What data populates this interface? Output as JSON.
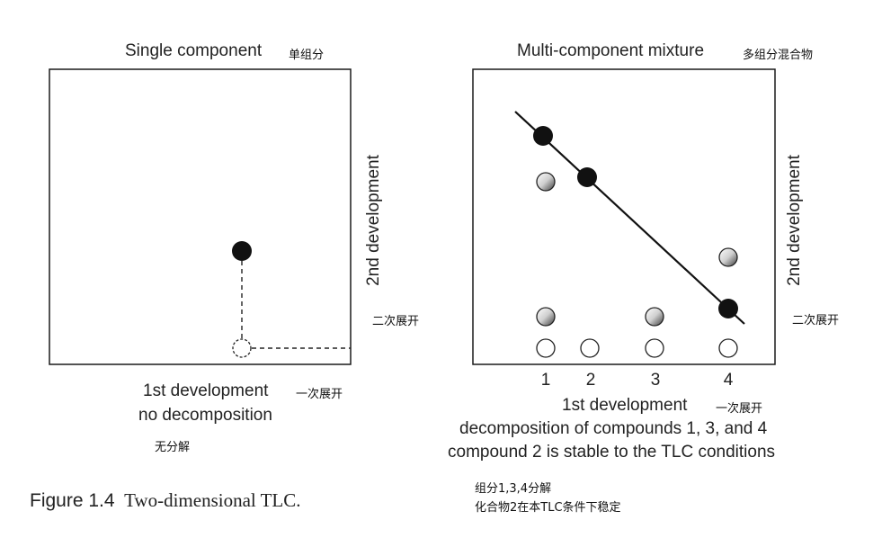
{
  "left_panel": {
    "title": "Single component",
    "title_zh": "单组分",
    "y_axis_label": "2nd development",
    "y_axis_label_zh": "二次展开",
    "x_axis_label": "1st development",
    "x_axis_label_zh": "一次展开",
    "note": "no decomposition",
    "note_zh": "无分解"
  },
  "right_panel": {
    "title": "Multi-component mixture",
    "title_zh": "多组分混合物",
    "y_axis_label": "2nd development",
    "y_axis_label_zh": "二次展开",
    "x_axis_label": "1st development",
    "x_axis_label_zh": "一次展开",
    "lane_labels": [
      "1",
      "2",
      "3",
      "4"
    ],
    "note_line1": "decomposition of compounds 1, 3, and 4",
    "note_line2": "compound 2 is stable to the TLC conditions",
    "note_zh_line1": "组分1,3,4分解",
    "note_zh_line2": "化合物2在本TLC条件下稳定"
  },
  "figure_caption": {
    "number": "Figure 1.4",
    "text": "Two-dimensional TLC."
  }
}
